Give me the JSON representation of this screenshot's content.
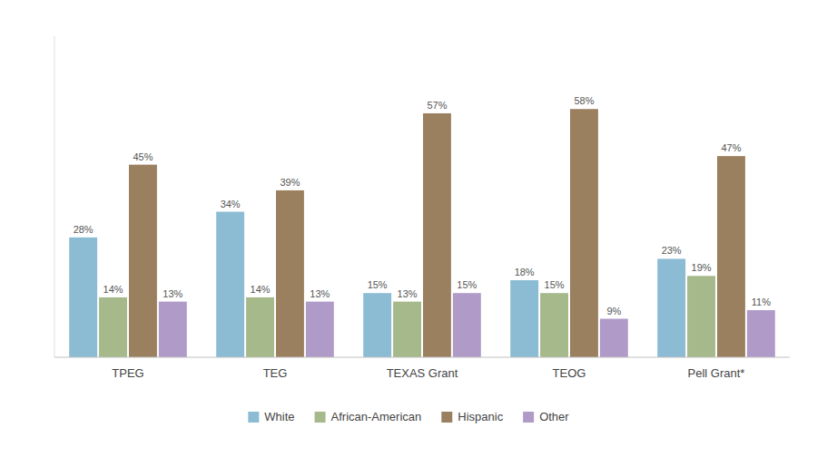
{
  "chart_data": {
    "type": "bar",
    "categories": [
      "TPEG",
      "TEG",
      "TEXAS Grant",
      "TEOG",
      "Pell Grant*"
    ],
    "series": [
      {
        "name": "White",
        "color": "#8bbcd4",
        "values": [
          28,
          34,
          15,
          18,
          23
        ],
        "value_labels": [
          "28%",
          "34%",
          "15%",
          "18%",
          "23%"
        ]
      },
      {
        "name": "African-American",
        "color": "#a5b98a",
        "values": [
          14,
          14,
          13,
          15,
          19
        ],
        "value_labels": [
          "14%",
          "14%",
          "13%",
          "15%",
          "19%"
        ]
      },
      {
        "name": "Hispanic",
        "color": "#9b8060",
        "values": [
          45,
          39,
          57,
          58,
          47
        ],
        "value_labels": [
          "45%",
          "39%",
          "57%",
          "58%",
          "47%"
        ]
      },
      {
        "name": "Other",
        "color": "#b09bc8",
        "values": [
          13,
          13,
          15,
          9,
          11
        ],
        "value_labels": [
          "13%",
          "13%",
          "15%",
          "9%",
          "11%"
        ]
      }
    ],
    "ylim": [
      0,
      75
    ],
    "yticks": [],
    "grid": false,
    "legend": "bottom",
    "data_labels": true,
    "tick_labels": "x"
  }
}
